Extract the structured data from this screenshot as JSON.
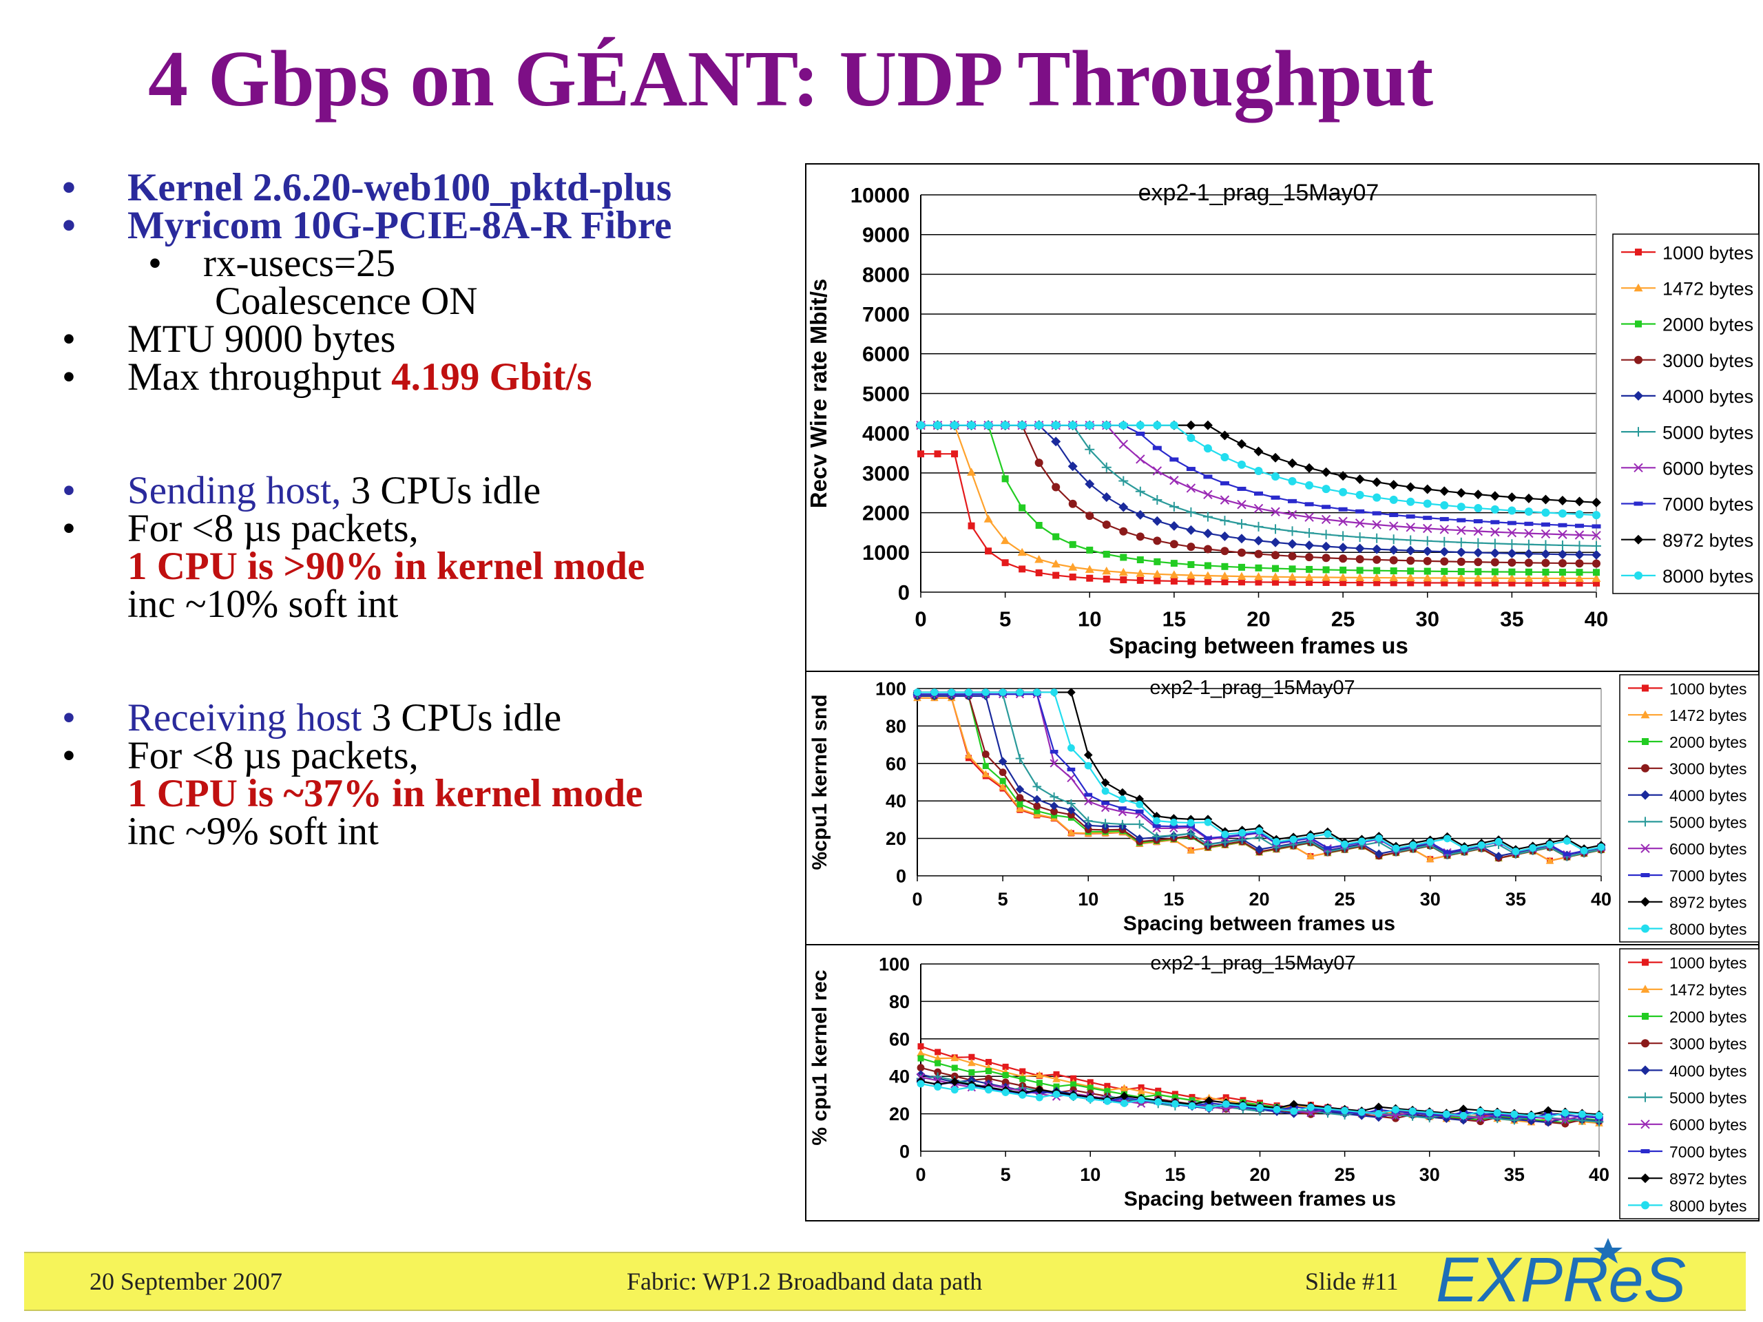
{
  "slide": {
    "title": "4 Gbps on GÉANT:  UDP Throughput",
    "bullets": [
      {
        "text": "Kernel  2.6.20-web100_pktd-plus"
      },
      {
        "text": "Myricom 10G-PCIE-8A-R Fibre"
      },
      {
        "text": "rx-usecs=25"
      },
      {
        "text": "Coalescence ON"
      },
      {
        "text": "MTU 9000 bytes"
      },
      {
        "text": "Max throughput ",
        "highlight": "4.199 Gbit/s"
      },
      {
        "text_blue": "Sending host,",
        "text": " 3 CPUs  idle"
      },
      {
        "text": "For <8 µs packets,"
      },
      {
        "text": "1 CPU is >90% in kernel mode"
      },
      {
        "text": "inc ~10% soft int"
      },
      {
        "text_blue": "Receiving host",
        "text": " 3 CPUs  idle"
      },
      {
        "text": "For <8 µs packets,"
      },
      {
        "text": "1 CPU is ~37% in kernel mode"
      },
      {
        "text": "inc ~9% soft int"
      }
    ]
  },
  "footer": {
    "date": "20 September 2007",
    "center": "Fabric: WP1.2 Broadband data path",
    "slide_no": "Slide #11",
    "logo_text": "EXPReS"
  },
  "chart_data": [
    {
      "type": "line",
      "title": "exp2-1_prag_15May07",
      "xlabel": "Spacing between frames us",
      "ylabel": "Recv Wire rate Mbit/s",
      "xlim": [
        0,
        40
      ],
      "ylim": [
        0,
        10000
      ],
      "xticks": [
        0,
        5,
        10,
        15,
        20,
        25,
        30,
        35,
        40
      ],
      "yticks": [
        0,
        1000,
        2000,
        3000,
        4000,
        5000,
        6000,
        7000,
        8000,
        9000,
        10000
      ],
      "legend_position": "right",
      "series": [
        {
          "name": "1000 bytes",
          "color": "#e41a1c",
          "marker": "square",
          "plateau": 3480,
          "knee": 2,
          "final": 220
        },
        {
          "name": "1472 bytes",
          "color": "#ffa22c",
          "marker": "triangle",
          "plateau": 4200,
          "knee": 2.5,
          "final": 330
        },
        {
          "name": "2000 bytes",
          "color": "#22cc22",
          "marker": "square",
          "plateau": 4200,
          "knee": 4,
          "final": 460
        },
        {
          "name": "3000 bytes",
          "color": "#8b1a1a",
          "marker": "circle",
          "plateau": 4200,
          "knee": 6,
          "final": 640
        },
        {
          "name": "4000 bytes",
          "color": "#1a2a9c",
          "marker": "diamond",
          "plateau": 4200,
          "knee": 7.5,
          "final": 820
        },
        {
          "name": "5000 bytes",
          "color": "#2a9a9a",
          "marker": "plus",
          "plateau": 4200,
          "knee": 9,
          "final": 1000
        },
        {
          "name": "6000 bytes",
          "color": "#9a2ab5",
          "marker": "x",
          "plateau": 4200,
          "knee": 11,
          "final": 1200
        },
        {
          "name": "7000 bytes",
          "color": "#2a2acc",
          "marker": "dash",
          "plateau": 4200,
          "knee": 12.5,
          "final": 1380
        },
        {
          "name": "8972 bytes",
          "color": "#000000",
          "marker": "diamond",
          "plateau": 4200,
          "knee": 17,
          "final": 1830
        },
        {
          "name": "8000 bytes",
          "color": "#22ddee",
          "marker": "circle",
          "plateau": 4200,
          "knee": 15,
          "final": 1570
        }
      ]
    },
    {
      "type": "line",
      "title": "exp2-1_prag_15May07",
      "xlabel": "Spacing between frames us",
      "ylabel": "%cpu1 kernel snd",
      "xlim": [
        0,
        40
      ],
      "ylim": [
        0,
        100
      ],
      "xticks": [
        0,
        5,
        10,
        15,
        20,
        25,
        30,
        35,
        40
      ],
      "yticks": [
        0,
        20,
        40,
        60,
        80,
        100
      ],
      "legend_position": "right",
      "series": [
        {
          "name": "1000 bytes",
          "high": 95,
          "drop": 2.5,
          "final": 10
        },
        {
          "name": "1472 bytes",
          "high": 95,
          "drop": 2.6,
          "final": 10
        },
        {
          "name": "2000 bytes",
          "high": 96,
          "drop": 3,
          "final": 11
        },
        {
          "name": "3000 bytes",
          "high": 96,
          "drop": 3.5,
          "final": 11
        },
        {
          "name": "4000 bytes",
          "high": 96,
          "drop": 4,
          "final": 12
        },
        {
          "name": "5000 bytes",
          "high": 97,
          "drop": 5,
          "final": 12
        },
        {
          "name": "6000 bytes",
          "high": 97,
          "drop": 7,
          "final": 13
        },
        {
          "name": "7000 bytes",
          "high": 97,
          "drop": 7.5,
          "final": 13
        },
        {
          "name": "8972 bytes",
          "high": 98,
          "drop": 9,
          "final": 15
        },
        {
          "name": "8000 bytes",
          "high": 98,
          "drop": 8.5,
          "final": 14
        }
      ]
    },
    {
      "type": "line",
      "title": "exp2-1_prag_15May07",
      "xlabel": "Spacing between frames us",
      "ylabel": "% cpu1 kernel rec",
      "xlim": [
        0,
        40
      ],
      "ylim": [
        0,
        100
      ],
      "xticks": [
        0,
        5,
        10,
        15,
        20,
        25,
        30,
        35,
        40
      ],
      "yticks": [
        0,
        20,
        40,
        60,
        80,
        100
      ],
      "legend_position": "right",
      "series": [
        {
          "name": "1000 bytes",
          "start": 56,
          "final": 11
        },
        {
          "name": "1472 bytes",
          "start": 53,
          "final": 11
        },
        {
          "name": "2000 bytes",
          "start": 49,
          "final": 12
        },
        {
          "name": "3000 bytes",
          "start": 44,
          "final": 12
        },
        {
          "name": "4000 bytes",
          "start": 41,
          "final": 13
        },
        {
          "name": "5000 bytes",
          "start": 40,
          "final": 14
        },
        {
          "name": "6000 bytes",
          "start": 39,
          "final": 15
        },
        {
          "name": "7000 bytes",
          "start": 38,
          "final": 16
        },
        {
          "name": "8972 bytes",
          "start": 38,
          "final": 18
        },
        {
          "name": "8000 bytes",
          "start": 36,
          "final": 17
        }
      ]
    }
  ]
}
